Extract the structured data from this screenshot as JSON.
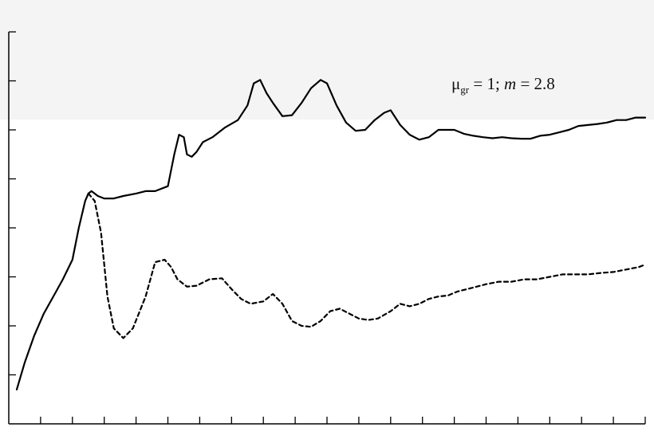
{
  "chart_data": {
    "type": "line",
    "title": "",
    "xlabel": "",
    "ylabel": "",
    "xlim": [
      0,
      20
    ],
    "ylim": [
      0,
      8
    ],
    "x_ticks": [
      1,
      2,
      3,
      4,
      5,
      6,
      7,
      8,
      9,
      10,
      11,
      12,
      13,
      14,
      15,
      16,
      17,
      18,
      19,
      20
    ],
    "y_ticks": [
      1,
      2,
      3,
      4,
      5,
      6,
      7,
      8
    ],
    "grid": false,
    "legend": "none",
    "annotation": {
      "mu": "μ",
      "sub": "gr",
      "eq1": " = 1;  ",
      "m": "m",
      "eq2": " = 2.8"
    },
    "series": [
      {
        "style": "solid",
        "color": "#000000",
        "x": [
          0.25,
          0.5,
          0.8,
          1.1,
          1.4,
          1.7,
          2.0,
          2.2,
          2.4,
          2.5,
          2.6,
          2.8,
          3.0,
          3.3,
          3.6,
          4.0,
          4.3,
          4.6,
          5.0,
          5.2,
          5.35,
          5.5,
          5.6,
          5.75,
          5.9,
          6.1,
          6.4,
          6.8,
          7.2,
          7.5,
          7.7,
          7.9,
          8.1,
          8.3,
          8.6,
          8.9,
          9.2,
          9.5,
          9.8,
          10.0,
          10.3,
          10.6,
          10.9,
          11.2,
          11.5,
          11.8,
          12.0,
          12.3,
          12.6,
          12.9,
          13.2,
          13.5,
          13.8,
          14.0,
          14.3,
          14.6,
          14.9,
          15.2,
          15.5,
          15.8,
          16.1,
          16.4,
          16.7,
          17.0,
          17.3,
          17.6,
          17.9,
          18.2,
          18.5,
          18.8,
          19.1,
          19.4,
          19.7,
          20.0
        ],
        "y": [
          0.7,
          1.25,
          1.8,
          2.25,
          2.6,
          2.95,
          3.35,
          4.0,
          4.55,
          4.7,
          4.75,
          4.65,
          4.6,
          4.6,
          4.65,
          4.7,
          4.75,
          4.75,
          4.85,
          5.5,
          5.9,
          5.85,
          5.5,
          5.45,
          5.55,
          5.75,
          5.85,
          6.05,
          6.2,
          6.5,
          6.95,
          7.02,
          6.75,
          6.55,
          6.28,
          6.3,
          6.55,
          6.85,
          7.02,
          6.95,
          6.5,
          6.15,
          5.98,
          6.0,
          6.2,
          6.35,
          6.4,
          6.1,
          5.9,
          5.8,
          5.85,
          6.0,
          6.0,
          6.0,
          5.92,
          5.88,
          5.85,
          5.83,
          5.85,
          5.83,
          5.82,
          5.82,
          5.88,
          5.9,
          5.95,
          6.0,
          6.08,
          6.1,
          6.12,
          6.15,
          6.2,
          6.2,
          6.25,
          6.25
        ]
      },
      {
        "style": "dashed",
        "color": "#000000",
        "x": [
          2.5,
          2.7,
          2.9,
          3.1,
          3.3,
          3.6,
          3.9,
          4.3,
          4.6,
          4.9,
          5.1,
          5.3,
          5.6,
          5.9,
          6.3,
          6.7,
          7.0,
          7.3,
          7.6,
          8.0,
          8.3,
          8.6,
          8.9,
          9.2,
          9.5,
          9.8,
          10.1,
          10.4,
          10.7,
          11.0,
          11.3,
          11.6,
          12.0,
          12.3,
          12.6,
          12.9,
          13.2,
          13.5,
          13.8,
          14.1,
          14.4,
          14.7,
          15.0,
          15.4,
          15.8,
          16.2,
          16.6,
          17.0,
          17.4,
          17.8,
          18.2,
          18.6,
          19.0,
          19.4,
          19.8,
          20.0
        ],
        "y": [
          4.7,
          4.55,
          3.9,
          2.6,
          1.95,
          1.75,
          1.95,
          2.6,
          3.3,
          3.35,
          3.2,
          2.95,
          2.8,
          2.82,
          2.95,
          2.97,
          2.75,
          2.55,
          2.45,
          2.5,
          2.65,
          2.45,
          2.1,
          2.0,
          1.98,
          2.1,
          2.3,
          2.35,
          2.25,
          2.15,
          2.12,
          2.15,
          2.3,
          2.45,
          2.4,
          2.45,
          2.55,
          2.6,
          2.62,
          2.7,
          2.75,
          2.8,
          2.85,
          2.9,
          2.9,
          2.95,
          2.95,
          3.0,
          3.05,
          3.05,
          3.05,
          3.08,
          3.1,
          3.15,
          3.2,
          3.25
        ]
      }
    ]
  }
}
